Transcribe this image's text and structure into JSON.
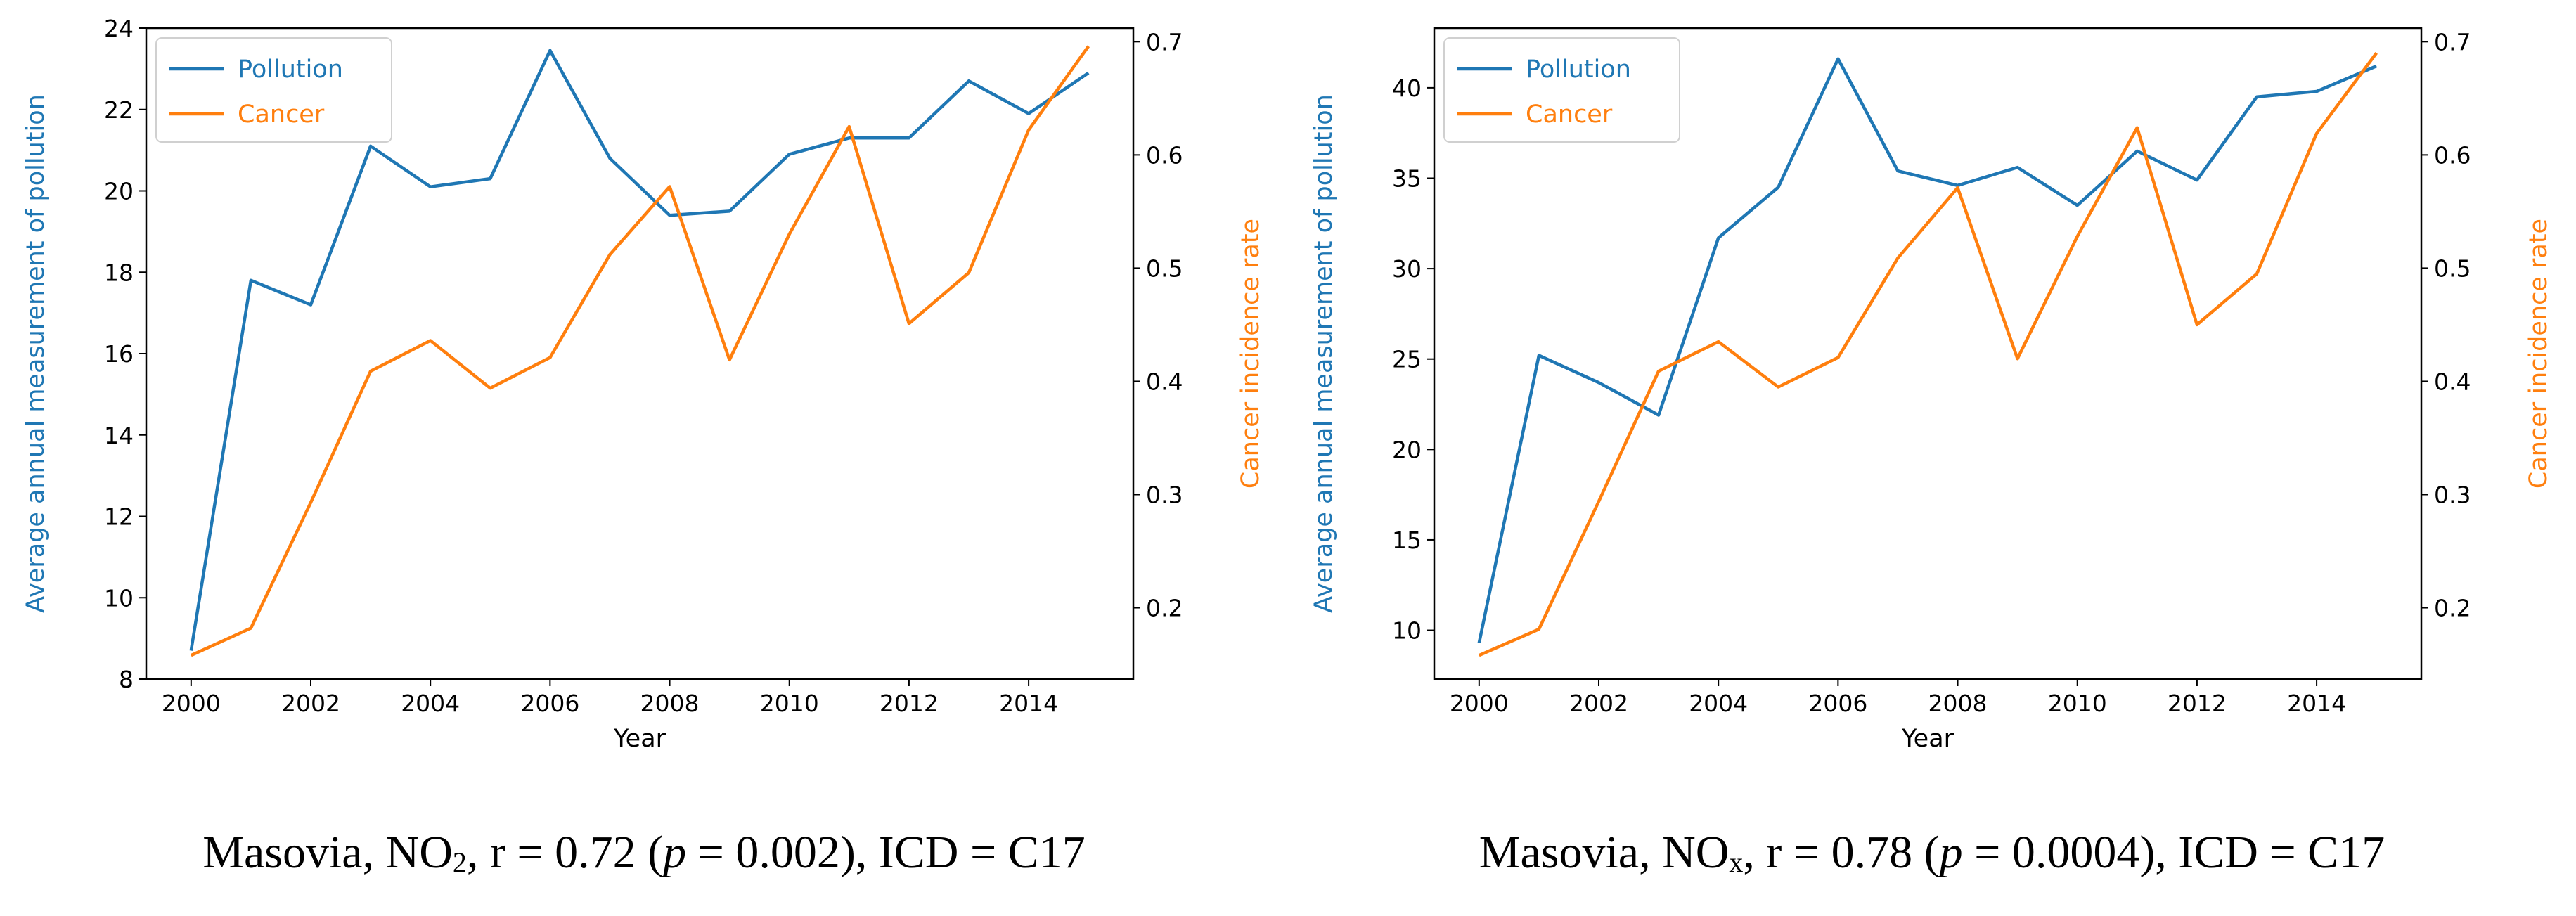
{
  "chart_data": [
    {
      "type": "line",
      "x": [
        2000,
        2001,
        2002,
        2003,
        2004,
        2005,
        2006,
        2007,
        2008,
        2009,
        2010,
        2011,
        2012,
        2013,
        2014,
        2015
      ],
      "xlabel": "Year",
      "xticks": [
        "2000",
        "2002",
        "2004",
        "2006",
        "2008",
        "2010",
        "2012",
        "2014"
      ],
      "xlim": [
        1999.25,
        2015.75
      ],
      "ylabel_left": "Average annual measurement of pollution",
      "ylabel_right": "Cancer incidence rate",
      "yticks_left": [
        "8",
        "10",
        "12",
        "14",
        "16",
        "18",
        "20",
        "22",
        "24"
      ],
      "ylim_left": [
        8,
        24
      ],
      "yticks_right": [
        "0.2",
        "0.3",
        "0.4",
        "0.5",
        "0.6",
        "0.7"
      ],
      "ylim_right": [
        0.137,
        0.712
      ],
      "series": [
        {
          "name": "Pollution",
          "axis": "left",
          "color": "#1f77b4",
          "values": [
            8.7,
            17.8,
            17.2,
            21.1,
            20.1,
            20.3,
            23.45,
            20.8,
            19.4,
            19.5,
            20.9,
            21.3,
            21.3,
            22.7,
            21.9,
            22.9
          ]
        },
        {
          "name": "Cancer",
          "axis": "right",
          "color": "#ff7f0e",
          "values": [
            0.158,
            0.182,
            0.293,
            0.409,
            0.436,
            0.394,
            0.421,
            0.512,
            0.572,
            0.419,
            0.53,
            0.625,
            0.451,
            0.496,
            0.622,
            0.696
          ]
        }
      ],
      "legend": "top-left",
      "caption": {
        "region": "Masovia, NO",
        "sub": "2",
        "r": ", r = 0.72 (",
        "p": "p",
        "rest": " = 0.002), ICD = C17"
      }
    },
    {
      "type": "line",
      "x": [
        2000,
        2001,
        2002,
        2003,
        2004,
        2005,
        2006,
        2007,
        2008,
        2009,
        2010,
        2011,
        2012,
        2013,
        2014,
        2015
      ],
      "xlabel": "Year",
      "xticks": [
        "2000",
        "2002",
        "2004",
        "2006",
        "2008",
        "2010",
        "2012",
        "2014"
      ],
      "xlim": [
        1999.25,
        2015.75
      ],
      "ylabel_left": "Average annual measurement of pollution",
      "ylabel_right": "Cancer incidence rate",
      "yticks_left": [
        "10",
        "15",
        "20",
        "25",
        "30",
        "35",
        "40"
      ],
      "ylim_left": [
        7.3,
        43.3
      ],
      "yticks_right": [
        "0.2",
        "0.3",
        "0.4",
        "0.5",
        "0.6",
        "0.7"
      ],
      "ylim_right": [
        0.137,
        0.712
      ],
      "series": [
        {
          "name": "Pollution",
          "axis": "left",
          "color": "#1f77b4",
          "values": [
            9.3,
            25.2,
            23.7,
            21.9,
            31.7,
            34.5,
            41.6,
            35.4,
            34.6,
            35.6,
            33.5,
            36.5,
            34.9,
            39.5,
            39.8,
            41.2
          ]
        },
        {
          "name": "Cancer",
          "axis": "right",
          "color": "#ff7f0e",
          "values": [
            0.158,
            0.181,
            0.294,
            0.409,
            0.435,
            0.395,
            0.421,
            0.509,
            0.571,
            0.42,
            0.528,
            0.624,
            0.45,
            0.495,
            0.619,
            0.69
          ]
        }
      ],
      "legend": "top-left",
      "caption": {
        "region": "Masovia, NO",
        "sub": "x",
        "r": ", r = 0.78 (",
        "p": "p",
        "rest": " = 0.0004), ICD = C17"
      }
    }
  ]
}
